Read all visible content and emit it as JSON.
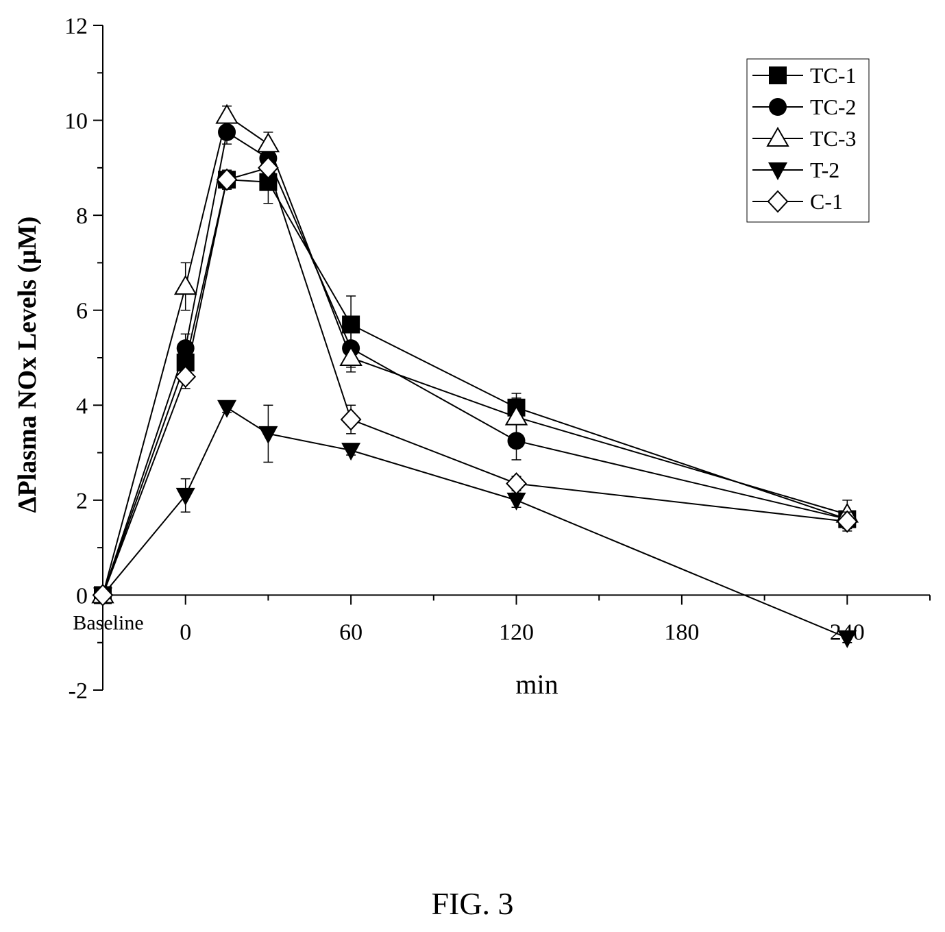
{
  "figure_label": "FIG. 3",
  "chart_data": {
    "type": "line",
    "xlabel": "min",
    "ylabel": "ΔPlasma NOx Levels (μM)",
    "xlim": [
      -30,
      270
    ],
    "ylim": [
      -2,
      12
    ],
    "x_ticks": [
      0,
      60,
      120,
      180,
      240
    ],
    "x_tick_labels": [
      "0",
      "60",
      "120",
      "180",
      "240"
    ],
    "baseline_label": "Baseline",
    "y_ticks": [
      -2,
      0,
      2,
      4,
      6,
      8,
      10,
      12
    ],
    "y_tick_labels": [
      "-2",
      "0",
      "2",
      "4",
      "6",
      "8",
      "10",
      "12"
    ],
    "legend_position": "top-right",
    "x": [
      -30,
      0,
      15,
      30,
      60,
      120,
      240
    ],
    "series": [
      {
        "name": "TC-1",
        "marker": "square-filled",
        "values": [
          0,
          4.9,
          8.75,
          8.7,
          5.7,
          3.95,
          1.6
        ],
        "errors": [
          0,
          0.3,
          0.2,
          0.45,
          0.6,
          0.3,
          0.15
        ]
      },
      {
        "name": "TC-2",
        "marker": "circle-filled",
        "values": [
          0,
          5.2,
          9.75,
          9.2,
          5.2,
          3.25,
          1.6
        ],
        "errors": [
          0,
          0.3,
          0.25,
          0.3,
          0.4,
          0.4,
          0.15
        ]
      },
      {
        "name": "TC-3",
        "marker": "triangle-up-open",
        "values": [
          0,
          6.5,
          10.1,
          9.5,
          5.0,
          3.75,
          1.7
        ],
        "errors": [
          0,
          0.5,
          0.2,
          0.25,
          0.3,
          0.4,
          0.3
        ]
      },
      {
        "name": "T-2",
        "marker": "triangle-down-filled",
        "values": [
          0,
          2.1,
          3.95,
          3.4,
          3.05,
          2.0,
          -0.9
        ],
        "errors": [
          0,
          0.35,
          0.1,
          0.6,
          0.1,
          0.15,
          0.1
        ]
      },
      {
        "name": "C-1",
        "marker": "diamond-open",
        "values": [
          0,
          4.6,
          8.75,
          9.0,
          3.7,
          2.35,
          1.55
        ],
        "errors": [
          0,
          0.25,
          0.2,
          0.3,
          0.3,
          0.15,
          0.2
        ]
      }
    ]
  }
}
